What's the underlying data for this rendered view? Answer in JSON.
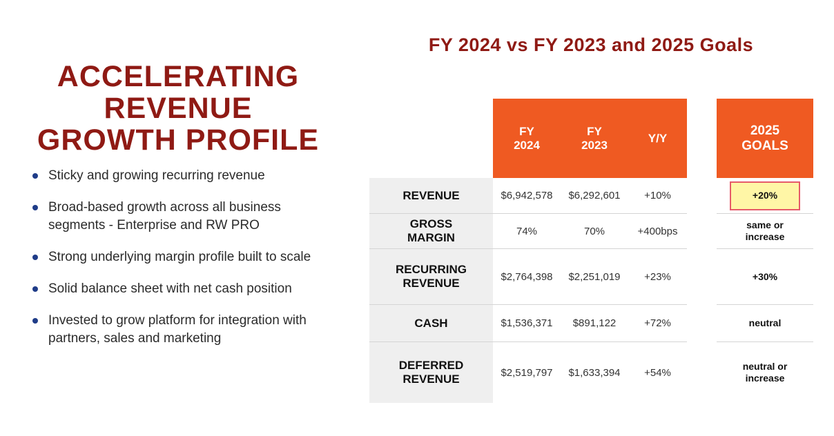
{
  "left": {
    "title_lines": [
      "ACCELERATING",
      "REVENUE",
      "GROWTH PROFILE"
    ],
    "bullets": [
      "Sticky and growing recurring revenue",
      "Broad-based growth across all business segments - Enterprise and RW PRO",
      "Strong underlying margin profile built to scale",
      "Solid balance sheet with net cash position",
      "Invested to grow platform for integration with partners, sales and marketing"
    ],
    "bullet_color": "#1f3c88",
    "title_color": "#8f1a14"
  },
  "table": {
    "title": "FY 2024 vs FY 2023 and 2025 Goals",
    "header_color": "#ef5a22",
    "headers": {
      "fy2024": [
        "FY",
        "2024"
      ],
      "fy2023": [
        "FY",
        "2023"
      ],
      "yy": "Y/Y",
      "goals": [
        "2025",
        "GOALS"
      ]
    },
    "rows": [
      {
        "label": [
          "REVENUE"
        ],
        "fy2024": "$6,942,578",
        "fy2023": "$6,292,601",
        "yy": "+10%",
        "goal": [
          "+20%"
        ]
      },
      {
        "label": [
          "GROSS",
          "MARGIN"
        ],
        "fy2024": "74%",
        "fy2023": "70%",
        "yy": "+400bps",
        "goal": [
          "same or",
          "increase"
        ]
      },
      {
        "label": [
          "RECURRING",
          "REVENUE"
        ],
        "fy2024": "$2,764,398",
        "fy2023": "$2,251,019",
        "yy": "+23%",
        "goal": [
          "+30%"
        ]
      },
      {
        "label": [
          "CASH"
        ],
        "fy2024": "$1,536,371",
        "fy2023": "$891,122",
        "yy": "+72%",
        "goal": [
          "neutral"
        ]
      },
      {
        "label": [
          "DEFERRED",
          "REVENUE"
        ],
        "fy2024": "$2,519,797",
        "fy2023": "$1,633,394",
        "yy": "+54%",
        "goal": [
          "neutral or",
          "increase"
        ]
      }
    ]
  }
}
